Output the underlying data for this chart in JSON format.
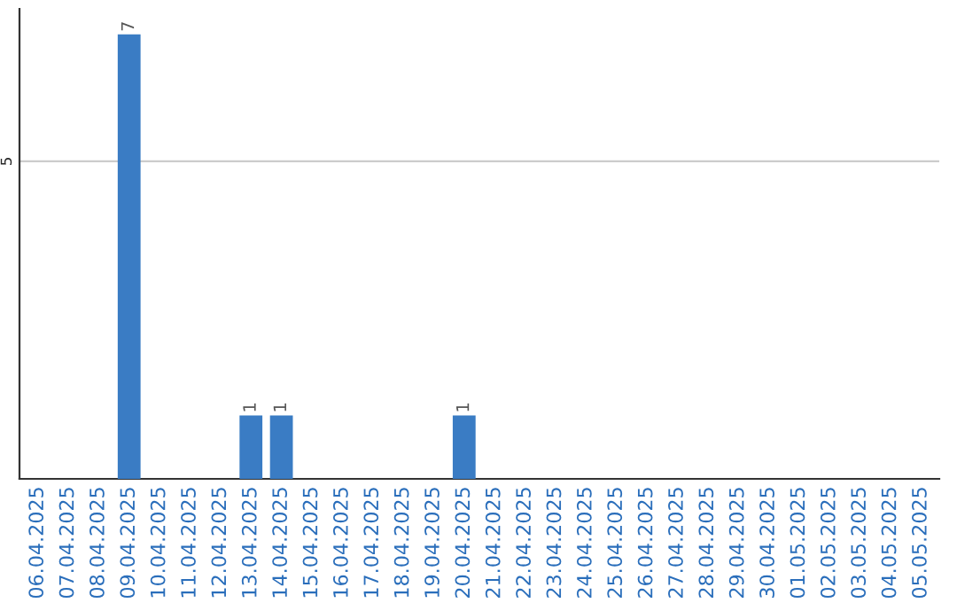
{
  "chart_data": {
    "type": "bar",
    "categories": [
      "06.04.2025",
      "07.04.2025",
      "08.04.2025",
      "09.04.2025",
      "10.04.2025",
      "11.04.2025",
      "12.04.2025",
      "13.04.2025",
      "14.04.2025",
      "15.04.2025",
      "16.04.2025",
      "17.04.2025",
      "18.04.2025",
      "19.04.2025",
      "20.04.2025",
      "21.04.2025",
      "22.04.2025",
      "23.04.2025",
      "24.04.2025",
      "25.04.2025",
      "26.04.2025",
      "27.04.2025",
      "28.04.2025",
      "29.04.2025",
      "30.04.2025",
      "01.05.2025",
      "02.05.2025",
      "03.05.2025",
      "04.05.2025",
      "05.05.2025"
    ],
    "values": [
      0,
      0,
      0,
      7,
      0,
      0,
      0,
      1,
      1,
      0,
      0,
      0,
      0,
      0,
      1,
      0,
      0,
      0,
      0,
      0,
      0,
      0,
      0,
      0,
      0,
      0,
      0,
      0,
      0,
      0
    ],
    "value_labels": [
      null,
      null,
      null,
      "7",
      null,
      null,
      null,
      "1",
      "1",
      null,
      null,
      null,
      null,
      null,
      "1",
      null,
      null,
      null,
      null,
      null,
      null,
      null,
      null,
      null,
      null,
      null,
      null,
      null,
      null,
      null
    ],
    "color": "#3a7cc4",
    "ylim": [
      0,
      7.4
    ],
    "yticks": [
      5
    ],
    "grid": "y",
    "legend": false
  }
}
